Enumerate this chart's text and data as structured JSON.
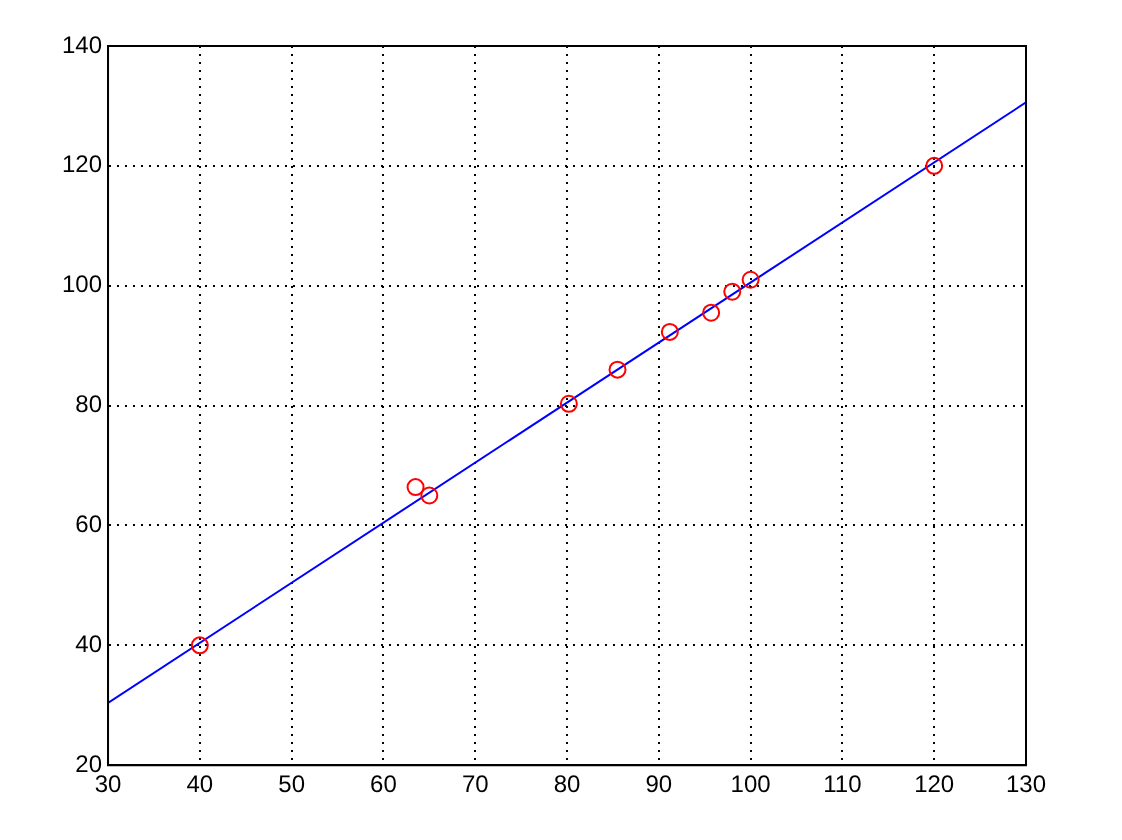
{
  "chart_data": {
    "type": "scatter",
    "xlim": [
      30,
      130
    ],
    "ylim": [
      20,
      140
    ],
    "xticks": [
      30,
      40,
      50,
      60,
      70,
      80,
      90,
      100,
      110,
      120,
      130
    ],
    "yticks": [
      20,
      40,
      60,
      80,
      100,
      120,
      140
    ],
    "grid": true,
    "series": [
      {
        "marker": "circle",
        "color": "#ff0000",
        "x": [
          40,
          63.5,
          65,
          80.2,
          85.5,
          91.2,
          95.7,
          98,
          100,
          120
        ],
        "values": [
          40,
          66.4,
          65,
          80.3,
          86,
          92.3,
          95.5,
          99,
          101,
          120
        ]
      },
      {
        "type": "line",
        "color": "#0000ff",
        "x": [
          30,
          130
        ],
        "values": [
          30.4,
          130.6
        ]
      }
    ]
  }
}
